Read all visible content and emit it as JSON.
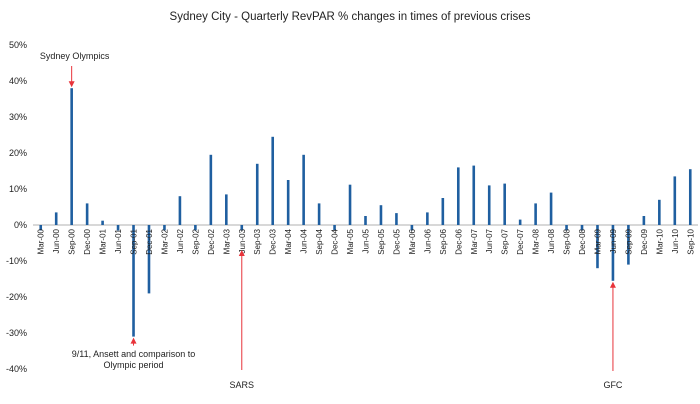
{
  "chart_data": {
    "type": "bar",
    "title": "Sydney City - Quarterly RevPAR % changes in times of previous crises",
    "xlabel": "",
    "ylabel": "",
    "ylim": [
      -40,
      50
    ],
    "y_ticks": [
      50,
      40,
      30,
      20,
      10,
      0,
      -10,
      -20,
      -30,
      -40
    ],
    "y_tick_labels": [
      "50%",
      "40%",
      "30%",
      "20%",
      "10%",
      "0%",
      "-10%",
      "-20%",
      "-30%",
      "-40%"
    ],
    "grid": false,
    "legend": "none",
    "bar_color": "#1f5fa0",
    "annotation_color": "#e8333a",
    "categories": [
      "Mar-00",
      "Jun-00",
      "Sep-00",
      "Dec-00",
      "Mar-01",
      "Jun-01",
      "Sep-01",
      "Dec-01",
      "Mar-02",
      "Jun-02",
      "Sep-02",
      "Dec-02",
      "Mar-03",
      "Jun-03",
      "Sep-03",
      "Dec-03",
      "Mar-04",
      "Jun-04",
      "Sep-04",
      "Dec-04",
      "Mar-05",
      "Jun-05",
      "Sep-05",
      "Dec-05",
      "Mar-06",
      "Jun-06",
      "Sep-06",
      "Dec-06",
      "Mar-07",
      "Jun-07",
      "Sep-07",
      "Dec-07",
      "Mar-08",
      "Jun-08",
      "Sep-08",
      "Dec-08",
      "Mar-09",
      "Jun-09",
      "Sep-09",
      "Dec-09",
      "Mar-10",
      "Jun-10",
      "Sep-10"
    ],
    "values": [
      -1.5,
      3.5,
      38,
      6,
      1.2,
      -1.5,
      -31,
      -19,
      -1.5,
      8,
      -1.5,
      19.5,
      8.5,
      -1.5,
      17,
      24.5,
      12.5,
      19.5,
      6,
      -1.5,
      11.2,
      2.5,
      5.5,
      3.3,
      -1.5,
      3.5,
      7.5,
      16,
      16.5,
      11,
      11.5,
      1.5,
      6,
      9,
      -1.5,
      -1.5,
      -12,
      -15.5,
      -11,
      2.5,
      7,
      13.5,
      15.5
    ],
    "annotations": [
      {
        "text": "Sydney Olympics",
        "category": "Sep-00",
        "position": "above"
      },
      {
        "text": "9/11, Ansett and comparison to",
        "text2": "Olympic period",
        "category": "Sep-01",
        "position": "below"
      },
      {
        "text": "SARS",
        "category": "Jun-03",
        "position": "below"
      },
      {
        "text": "GFC",
        "category": "Jun-09",
        "position": "below"
      }
    ]
  }
}
